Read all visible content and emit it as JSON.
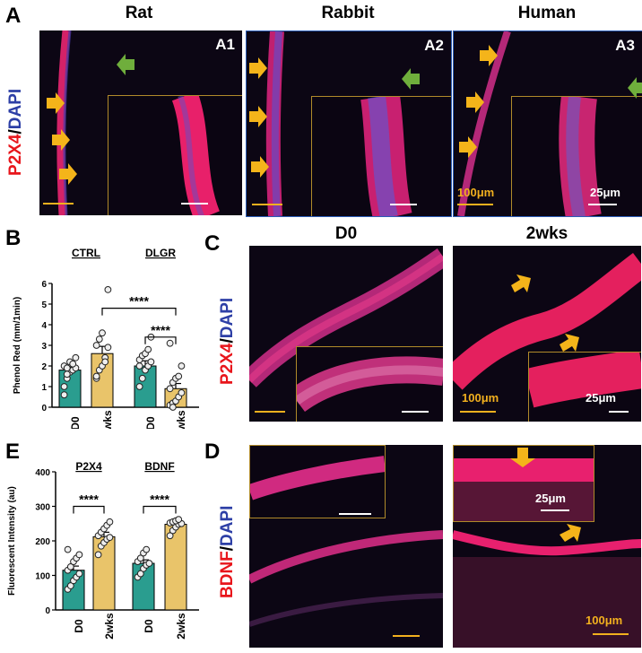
{
  "panels": {
    "A": {
      "label": "A",
      "species": [
        "Rat",
        "Rabbit",
        "Human"
      ],
      "tags": [
        "A1",
        "A2",
        "A3"
      ],
      "stain_red": "P2X4",
      "stain_sep": "/",
      "stain_blue": "DAPI",
      "scale_big": "100μm",
      "scale_small": "25μm"
    },
    "B": {
      "label": "B",
      "group1": "CTRL",
      "group2": "DLGR",
      "sig_top": "****",
      "sig_mid": "****"
    },
    "C": {
      "label": "C",
      "col1": "D0",
      "col2": "2wks",
      "stain_red": "P2X4",
      "stain_sep": "/",
      "stain_blue": "DAPI",
      "scale_big": "100μm",
      "scale_small": "25μm"
    },
    "D": {
      "label": "D",
      "stain_red": "BDNF",
      "stain_sep": "/",
      "stain_blue": "DAPI",
      "scale_big": "100μm",
      "scale_small": "25μm"
    },
    "E": {
      "label": "E",
      "group1": "P2X4",
      "group2": "BDNF",
      "sig1": "****",
      "sig2": "****"
    }
  },
  "colors": {
    "d0": "#2a9d8f",
    "wks": "#e9c46a",
    "arrow": "#f4b41a",
    "arrow_green": "#6fae3c",
    "scalebar_big": "#f2b01e",
    "tissue_red": "#e0206a"
  },
  "chart_data": [
    {
      "type": "bar",
      "panel": "B",
      "ylabel": "Phenol Red (mm/1min)",
      "ylim": [
        0,
        6
      ],
      "yticks": [
        0,
        1,
        2,
        3,
        4,
        5,
        6
      ],
      "categories": [
        "D0",
        "2wks",
        "D0",
        "2wks"
      ],
      "groups": [
        "CTRL",
        "DLGR"
      ],
      "values": [
        1.8,
        2.6,
        2.0,
        0.9
      ],
      "errors": [
        0.15,
        0.35,
        0.25,
        0.25
      ],
      "points": [
        [
          1.0,
          1.4,
          1.7,
          1.8,
          1.9,
          2.0,
          1.9,
          2.2,
          2.1,
          2.4,
          0.6,
          1.6
        ],
        [
          1.4,
          1.8,
          2.0,
          2.4,
          2.9,
          3.0,
          3.3,
          3.6,
          2.2,
          5.7,
          1.5
        ],
        [
          1.0,
          1.4,
          1.8,
          2.0,
          2.2,
          2.3,
          2.5,
          2.6,
          2.8,
          3.4,
          2.0
        ],
        [
          0.1,
          0.2,
          0.3,
          0.5,
          0.7,
          0.9,
          1.2,
          1.4,
          1.5,
          2.0,
          3.1,
          0.0
        ]
      ]
    },
    {
      "type": "bar",
      "panel": "E",
      "ylabel": "Fluorescent Intensity (au)",
      "ylim": [
        0,
        400
      ],
      "yticks": [
        0,
        100,
        200,
        300,
        400
      ],
      "categories": [
        "D0",
        "2wks",
        "D0",
        "2wks"
      ],
      "groups": [
        "P2X4",
        "BDNF"
      ],
      "values": [
        115,
        212,
        135,
        248
      ],
      "errors": [
        12,
        13,
        10,
        9
      ],
      "points": [
        [
          60,
          70,
          85,
          95,
          105,
          115,
          125,
          140,
          150,
          160,
          175
        ],
        [
          160,
          185,
          195,
          205,
          210,
          215,
          225,
          235,
          245,
          255
        ],
        [
          95,
          105,
          120,
          130,
          135,
          140,
          150,
          165,
          175
        ],
        [
          215,
          230,
          240,
          248,
          250,
          252,
          255,
          258,
          262
        ]
      ]
    }
  ]
}
